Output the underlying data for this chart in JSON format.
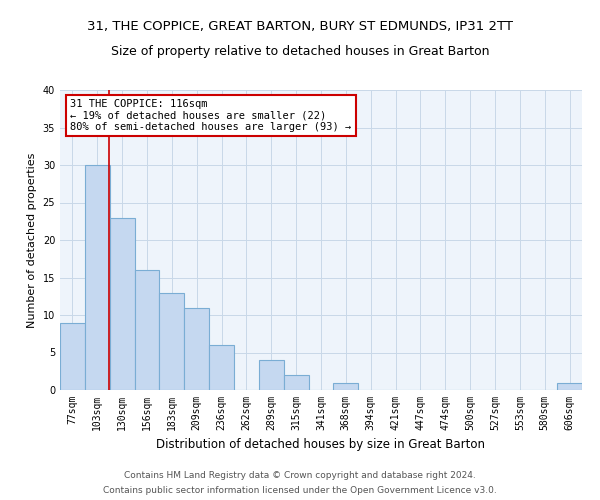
{
  "title1": "31, THE COPPICE, GREAT BARTON, BURY ST EDMUNDS, IP31 2TT",
  "title2": "Size of property relative to detached houses in Great Barton",
  "xlabel": "Distribution of detached houses by size in Great Barton",
  "ylabel": "Number of detached properties",
  "categories": [
    "77sqm",
    "103sqm",
    "130sqm",
    "156sqm",
    "183sqm",
    "209sqm",
    "236sqm",
    "262sqm",
    "289sqm",
    "315sqm",
    "341sqm",
    "368sqm",
    "394sqm",
    "421sqm",
    "447sqm",
    "474sqm",
    "500sqm",
    "527sqm",
    "553sqm",
    "580sqm",
    "606sqm"
  ],
  "values": [
    9,
    30,
    23,
    16,
    13,
    11,
    6,
    0,
    4,
    2,
    0,
    1,
    0,
    0,
    0,
    0,
    0,
    0,
    0,
    0,
    1
  ],
  "bar_color": "#c5d8f0",
  "bar_edge_color": "#7aadd4",
  "bar_linewidth": 0.8,
  "vline_x": 1.49,
  "vline_color": "#cc0000",
  "annotation_line1": "31 THE COPPICE: 116sqm",
  "annotation_line2": "← 19% of detached houses are smaller (22)",
  "annotation_line3": "80% of semi-detached houses are larger (93) →",
  "annotation_box_color": "#cc0000",
  "ylim": [
    0,
    40
  ],
  "yticks": [
    0,
    5,
    10,
    15,
    20,
    25,
    30,
    35,
    40
  ],
  "grid_color": "#c8d8e8",
  "background_color": "#eef4fb",
  "footer1": "Contains HM Land Registry data © Crown copyright and database right 2024.",
  "footer2": "Contains public sector information licensed under the Open Government Licence v3.0.",
  "title1_fontsize": 9.5,
  "title2_fontsize": 9,
  "xlabel_fontsize": 8.5,
  "ylabel_fontsize": 8,
  "tick_fontsize": 7,
  "annotation_fontsize": 7.5,
  "footer_fontsize": 6.5
}
